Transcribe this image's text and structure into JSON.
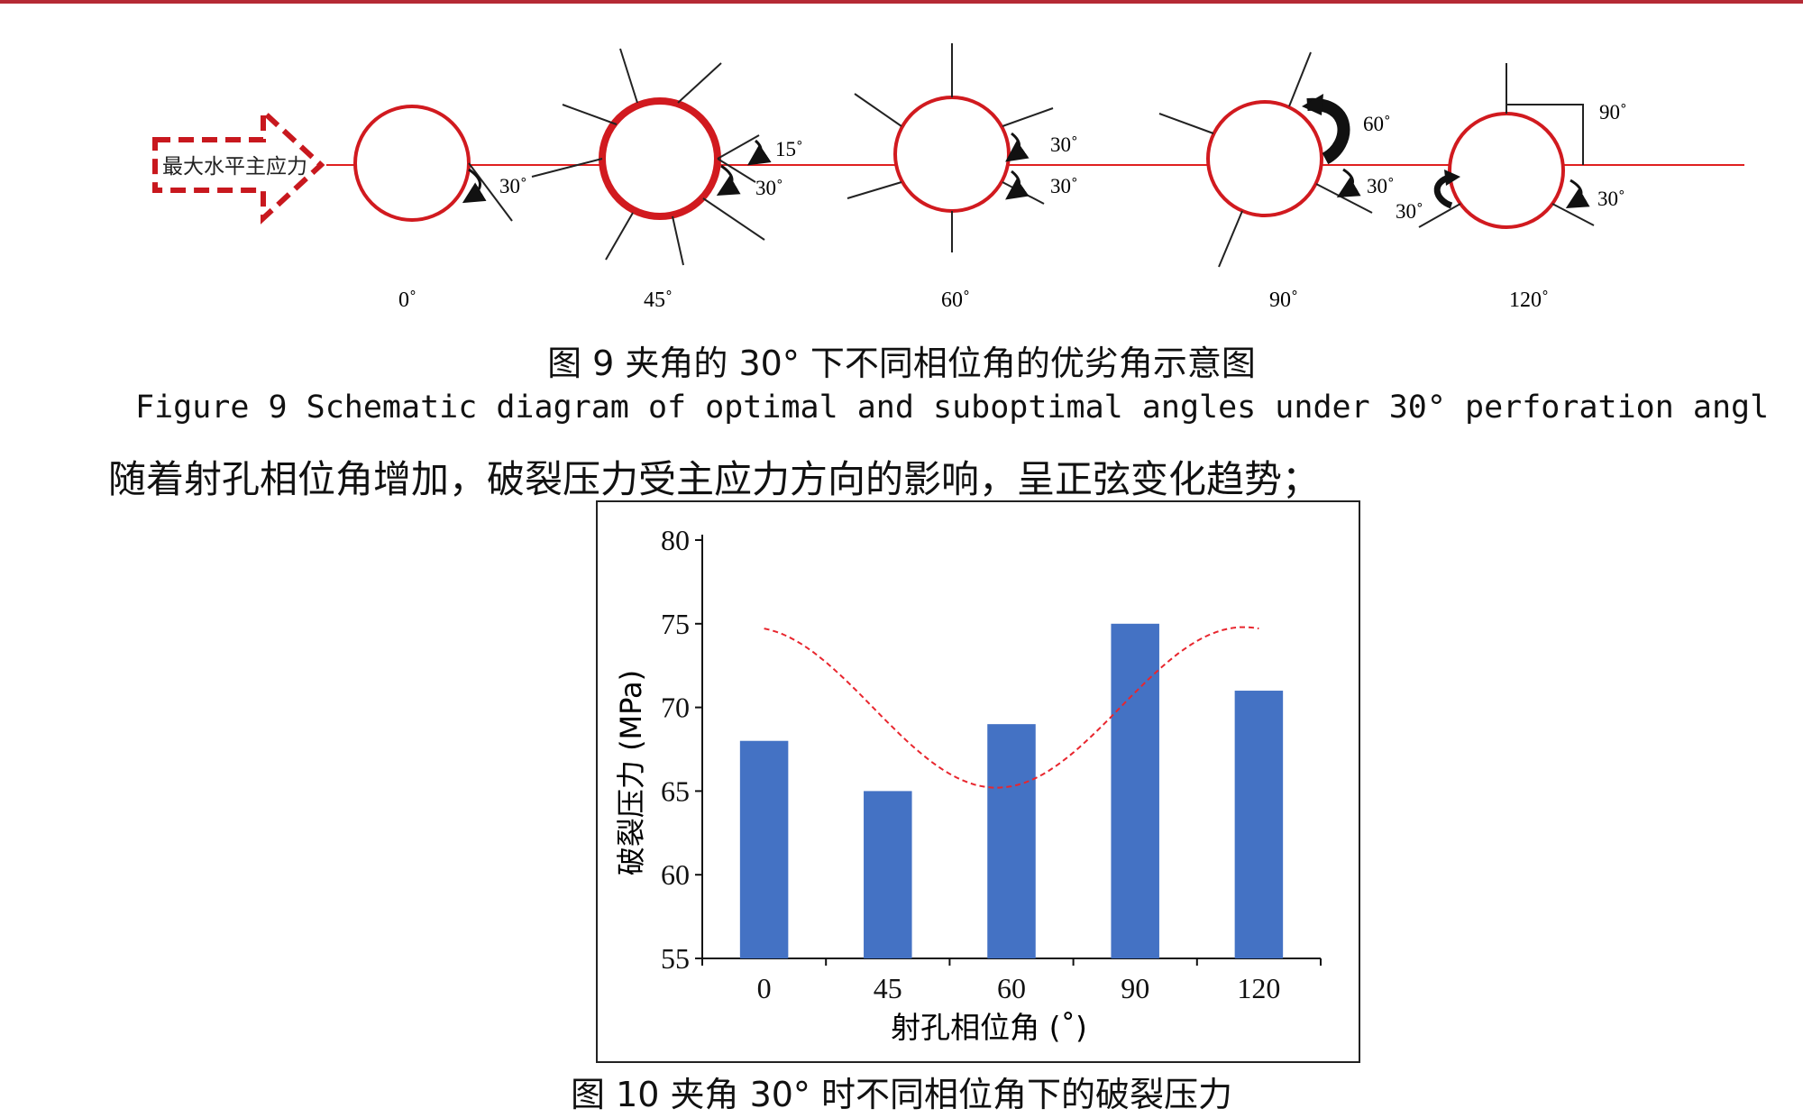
{
  "figure9": {
    "arrow_label": "最大水平主应力",
    "phases": [
      {
        "label": "0˚",
        "annotations": [
          "30˚"
        ]
      },
      {
        "label": "45˚",
        "annotations": [
          "15˚",
          "30˚"
        ]
      },
      {
        "label": "60˚",
        "annotations": [
          "30˚",
          "30˚"
        ]
      },
      {
        "label": "90˚",
        "annotations": [
          "60˚",
          "30˚"
        ]
      },
      {
        "label": "120˚",
        "annotations": [
          "90˚",
          "30˚",
          "30˚"
        ]
      }
    ],
    "caption_cn": "图 9 夹角的 30° 下不同相位角的优劣角示意图",
    "caption_en": "Figure 9 Schematic diagram of optimal and suboptimal angles under 30° perforation angl"
  },
  "body_text": "随着射孔相位角增加，破裂压力受主应力方向的影响，呈正弦变化趋势；",
  "figure10": {
    "caption_cn": "图 10 夹角 30° 时不同相位角下的破裂压力",
    "bar_color": "#4472c4",
    "trend_color": "#e8262e"
  },
  "chart_data": {
    "type": "bar",
    "categories": [
      "0",
      "45",
      "60",
      "90",
      "120"
    ],
    "values": [
      68,
      65,
      69,
      75,
      71
    ],
    "xlabel": "射孔相位角 (˚)",
    "ylabel": "破裂压力 (MPa)",
    "ylim": [
      55,
      80
    ],
    "yticks": [
      55,
      60,
      65,
      70,
      75,
      80
    ],
    "grid": false,
    "trendline": {
      "style": "dashed",
      "type": "sinusoidal fit"
    }
  }
}
